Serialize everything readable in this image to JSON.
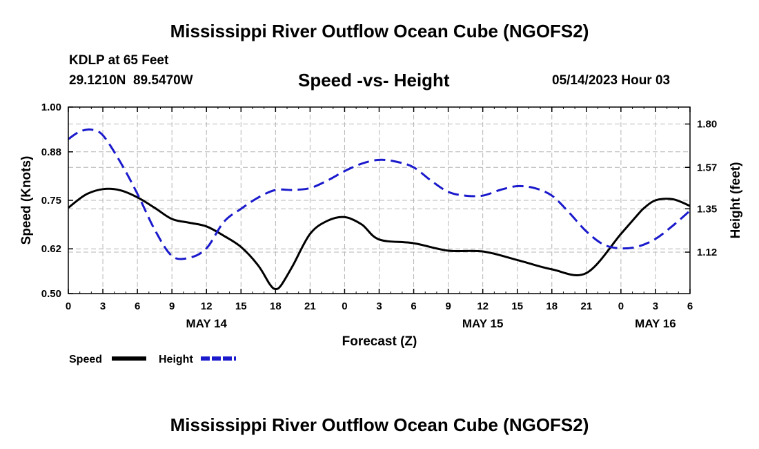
{
  "header": {
    "title": "Mississippi River Outflow Ocean Cube (NGOFS2)",
    "station": "KDLP at 65 Feet",
    "coordinates": "29.1210N  89.5470W",
    "subtitle": "Speed -vs- Height",
    "datetime": "05/14/2023 Hour 03"
  },
  "footer": {
    "title": "Mississippi River Outflow Ocean Cube (NGOFS2)"
  },
  "chart_data": {
    "type": "line",
    "title": "Speed -vs- Height",
    "xlabel": "Forecast (Z)",
    "ylabel_left": "Speed (Knots)",
    "ylabel_right": "Height (feet)",
    "x_range": [
      0,
      54
    ],
    "x_unit": "hours from 05/14/2023 00Z",
    "x_ticks": [
      0,
      3,
      6,
      9,
      12,
      15,
      18,
      21,
      24,
      27,
      30,
      33,
      36,
      39,
      42,
      45,
      48,
      51,
      54
    ],
    "x_tick_labels": [
      "0",
      "3",
      "6",
      "9",
      "12",
      "15",
      "18",
      "21",
      "0",
      "3",
      "6",
      "9",
      "12",
      "15",
      "18",
      "21",
      "0",
      "3",
      "6"
    ],
    "date_labels": [
      {
        "label": "MAY 14",
        "x": 12
      },
      {
        "label": "MAY 15",
        "x": 36
      },
      {
        "label": "MAY 16",
        "x": 51
      }
    ],
    "y_left": {
      "range": [
        0.5,
        1.0
      ],
      "ticks": [
        0.5,
        0.62,
        0.75,
        0.88,
        1.0
      ],
      "labels": [
        "0.50",
        "0.62",
        "0.75",
        "0.88",
        "1.00"
      ]
    },
    "y_right": {
      "range": [
        0.9,
        1.89
      ],
      "ticks": [
        1.12,
        1.35,
        1.57,
        1.8
      ],
      "labels": [
        "1.12",
        "1.35",
        "1.57",
        "1.80"
      ]
    },
    "grid": true,
    "legend": [
      {
        "label": "Speed",
        "color": "#000000",
        "style": "solid"
      },
      {
        "label": "Height",
        "color": "#1a1acc",
        "style": "dashed"
      }
    ],
    "series": [
      {
        "name": "Speed",
        "axis": "left",
        "color": "#000000",
        "style": "solid",
        "x": [
          0,
          1.5,
          3,
          4.5,
          6,
          7.5,
          9,
          10.5,
          12,
          13.5,
          15,
          16.5,
          17.5,
          18,
          18.5,
          19.5,
          21,
          22.5,
          24,
          25.5,
          27,
          30,
          33,
          36,
          39,
          42,
          45,
          48,
          49.5,
          50,
          51,
          52.5,
          54
        ],
        "values": [
          0.73,
          0.765,
          0.78,
          0.777,
          0.758,
          0.73,
          0.7,
          0.69,
          0.68,
          0.655,
          0.625,
          0.575,
          0.525,
          0.512,
          0.523,
          0.575,
          0.66,
          0.695,
          0.705,
          0.685,
          0.645,
          0.635,
          0.615,
          0.613,
          0.59,
          0.565,
          0.555,
          0.66,
          0.713,
          0.729,
          0.75,
          0.753,
          0.735
        ]
      },
      {
        "name": "Height",
        "axis": "right",
        "color": "#1a1acc",
        "style": "dashed",
        "x": [
          0,
          1,
          2,
          3,
          4.5,
          6,
          7.5,
          9,
          10.5,
          12,
          13.5,
          15,
          16.5,
          18,
          19.5,
          21,
          22.5,
          24,
          25.5,
          27,
          28.5,
          30,
          31.5,
          33,
          34.5,
          36,
          37.5,
          39,
          40.5,
          42,
          43.5,
          45,
          46.5,
          48,
          49.5,
          51,
          52.5,
          54
        ],
        "values": [
          1.72,
          1.76,
          1.77,
          1.74,
          1.6,
          1.43,
          1.24,
          1.1,
          1.09,
          1.14,
          1.28,
          1.35,
          1.41,
          1.45,
          1.45,
          1.46,
          1.5,
          1.55,
          1.59,
          1.61,
          1.6,
          1.57,
          1.5,
          1.44,
          1.42,
          1.42,
          1.45,
          1.47,
          1.46,
          1.42,
          1.33,
          1.23,
          1.16,
          1.14,
          1.15,
          1.19,
          1.26,
          1.34
        ]
      }
    ]
  }
}
